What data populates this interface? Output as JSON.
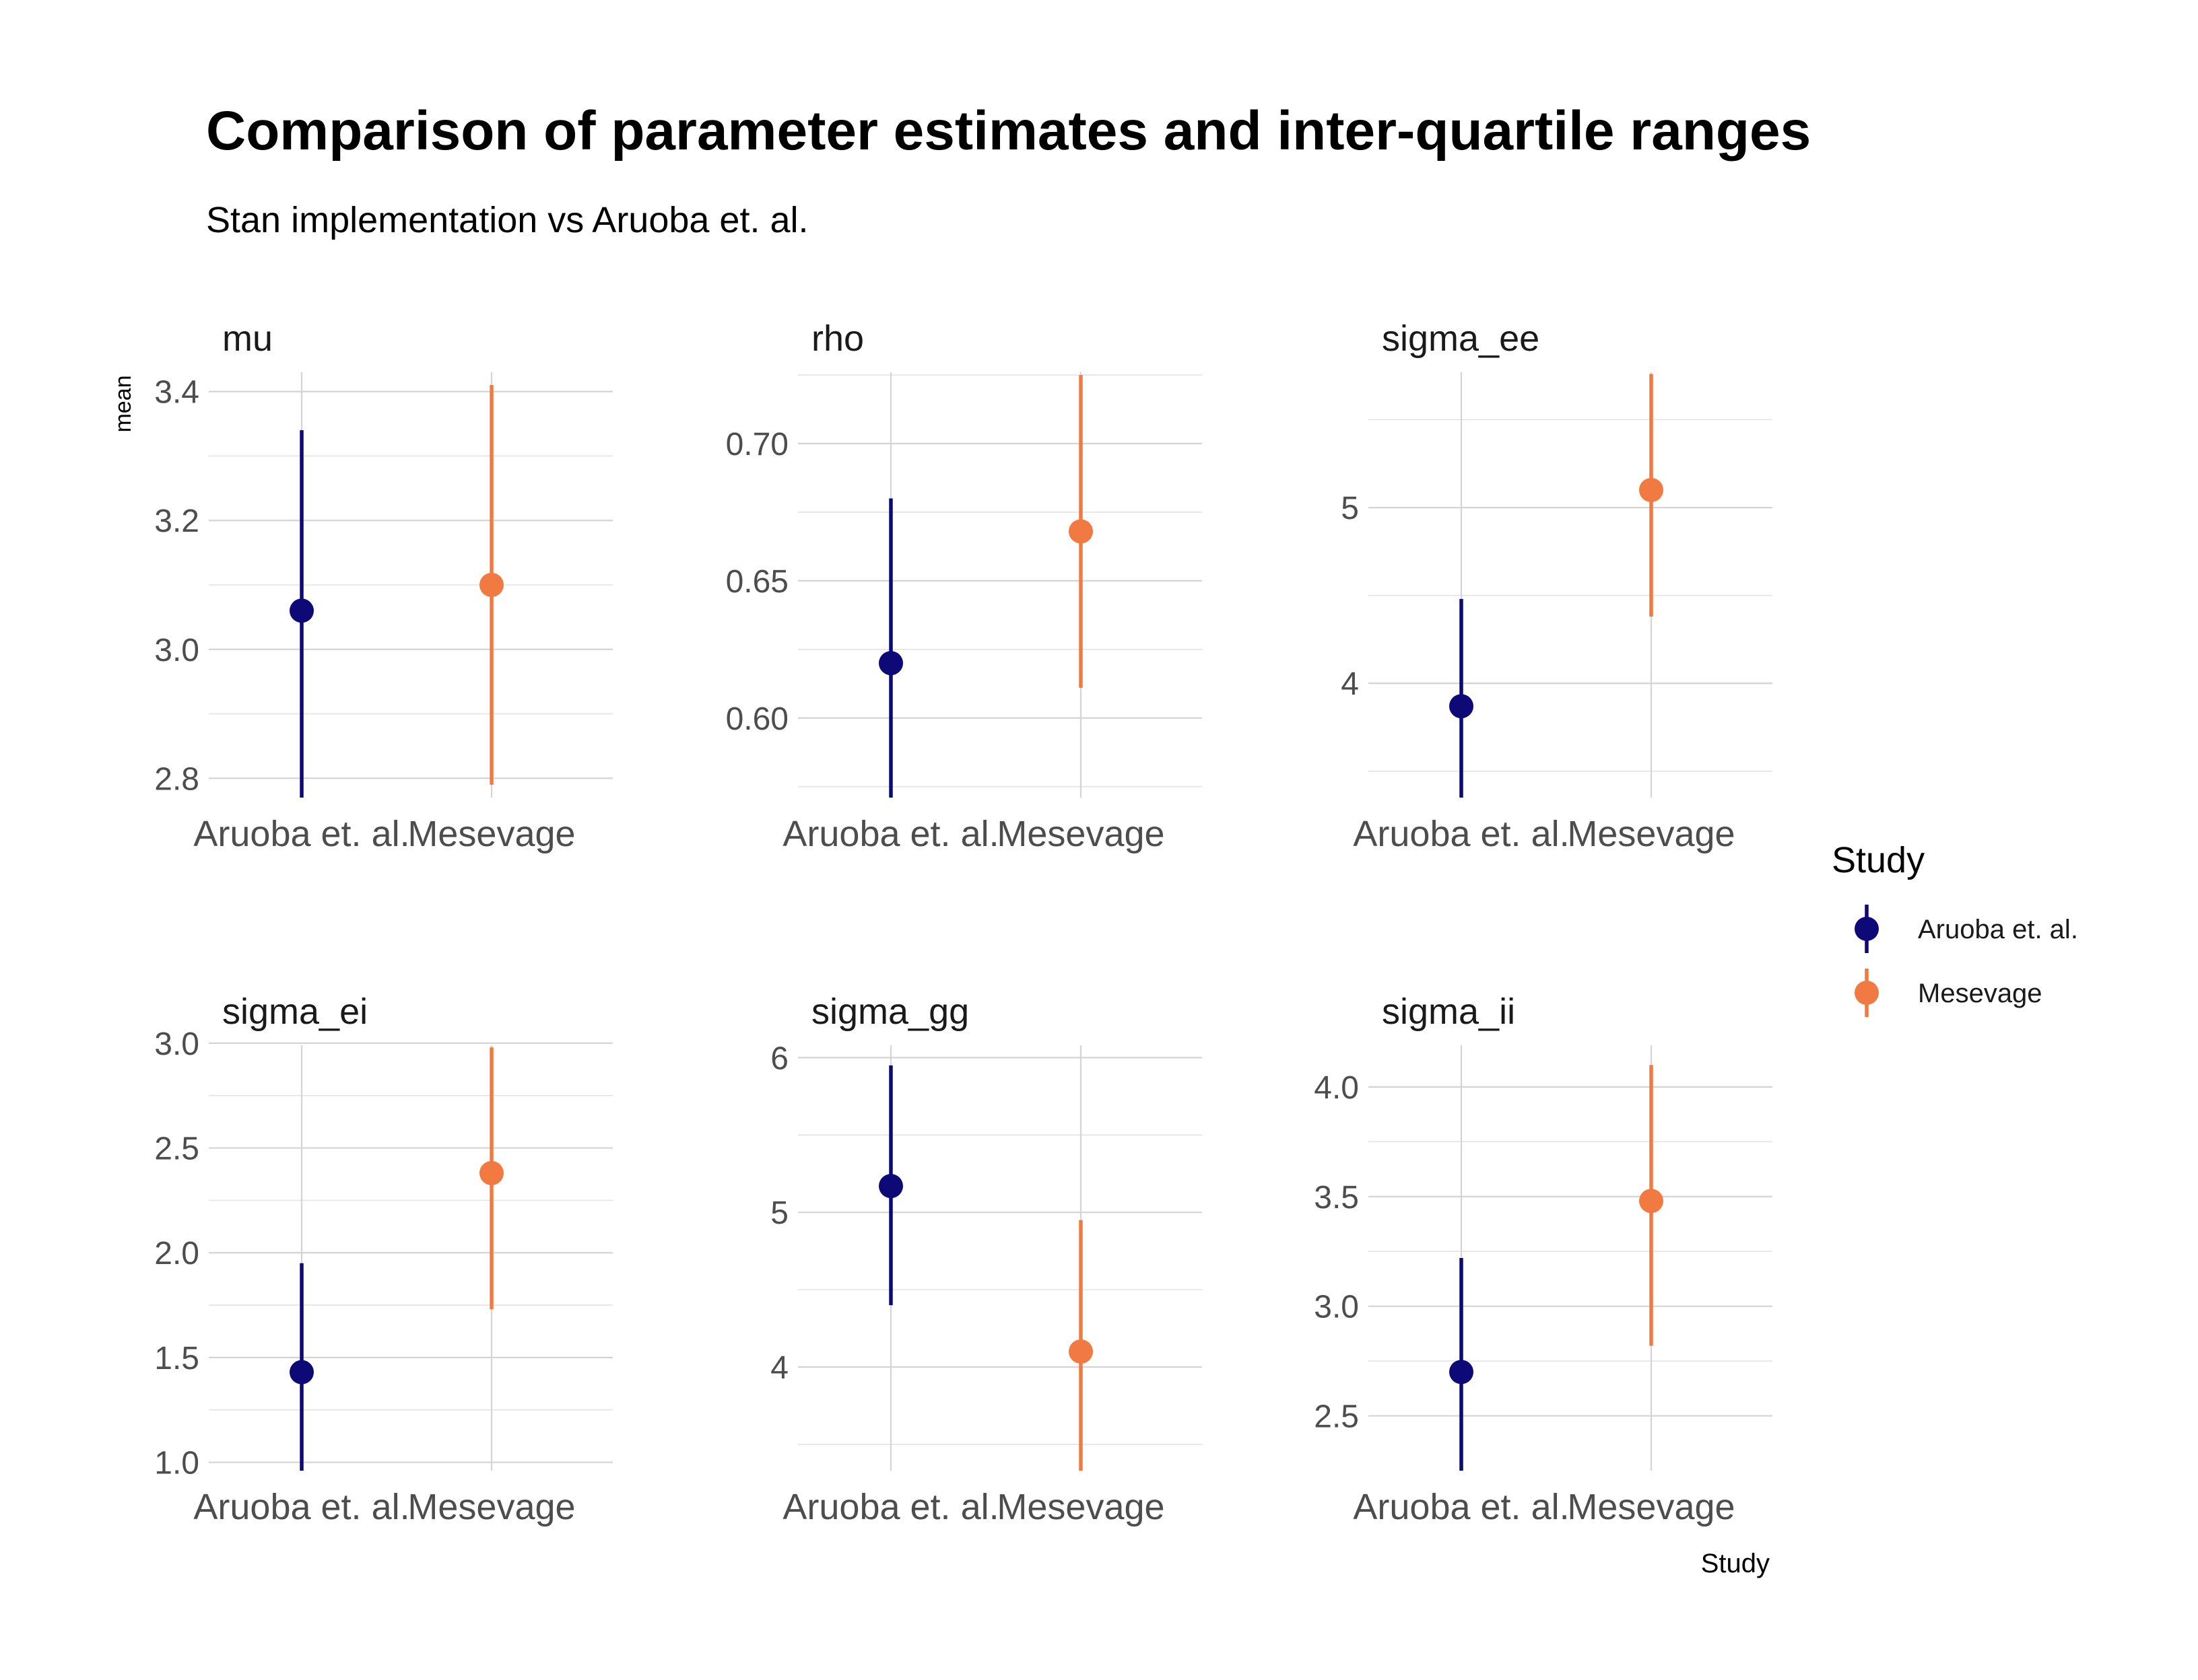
{
  "title": "Comparison of parameter estimates and inter-quartile ranges",
  "subtitle": "Stan implementation vs Aruoba et. al.",
  "chart_data": {
    "type": "pointrange",
    "facet_layout": "2 rows x 3 columns",
    "ylabel": "mean",
    "xlabel": "Study",
    "categories": [
      "Aruoba et. al.",
      "Mesevage"
    ],
    "colors": {
      "Aruoba et. al.": "#0d0a78",
      "Mesevage": "#f07a41"
    },
    "legend": {
      "title": "Study",
      "position": "right",
      "entries": [
        "Aruoba et. al.",
        "Mesevage"
      ]
    },
    "grid": true,
    "panels": [
      {
        "strip": "mu",
        "ylim": [
          2.77,
          3.43
        ],
        "yticks": [
          2.8,
          3.0,
          3.2,
          3.4
        ],
        "ytick_labels": [
          "2.8",
          "3.0",
          "3.2",
          "3.4"
        ],
        "yminor": [
          2.9,
          3.1,
          3.3
        ],
        "points": [
          {
            "study": "Aruoba et. al.",
            "mean": 3.06,
            "low": 2.77,
            "high": 3.34
          },
          {
            "study": "Mesevage",
            "mean": 3.1,
            "low": 2.79,
            "high": 3.41
          }
        ]
      },
      {
        "strip": "rho",
        "ylim": [
          0.571,
          0.726
        ],
        "yticks": [
          0.6,
          0.65,
          0.7
        ],
        "ytick_labels": [
          "0.60",
          "0.65",
          "0.70"
        ],
        "yminor": [
          0.575,
          0.625,
          0.675,
          0.725
        ],
        "points": [
          {
            "study": "Aruoba et. al.",
            "mean": 0.62,
            "low": 0.571,
            "high": 0.68
          },
          {
            "study": "Mesevage",
            "mean": 0.668,
            "low": 0.611,
            "high": 0.725
          }
        ]
      },
      {
        "strip": "sigma_ee",
        "ylim": [
          3.35,
          5.77
        ],
        "yticks": [
          4,
          5
        ],
        "ytick_labels": [
          "4",
          "5"
        ],
        "yminor": [
          3.5,
          4.5,
          5.5
        ],
        "points": [
          {
            "study": "Aruoba et. al.",
            "mean": 3.87,
            "low": 3.35,
            "high": 4.48
          },
          {
            "study": "Mesevage",
            "mean": 5.1,
            "low": 4.38,
            "high": 5.76
          }
        ]
      },
      {
        "strip": "sigma_ei",
        "ylim": [
          0.96,
          2.99
        ],
        "yticks": [
          1.0,
          1.5,
          2.0,
          2.5,
          3.0
        ],
        "ytick_labels": [
          "1.0",
          "1.5",
          "2.0",
          "2.5",
          "3.0"
        ],
        "yminor": [
          1.25,
          1.75,
          2.25,
          2.75
        ],
        "points": [
          {
            "study": "Aruoba et. al.",
            "mean": 1.43,
            "low": 0.96,
            "high": 1.95
          },
          {
            "study": "Mesevage",
            "mean": 2.38,
            "low": 1.73,
            "high": 2.98
          }
        ]
      },
      {
        "strip": "sigma_gg",
        "ylim": [
          3.33,
          6.08
        ],
        "yticks": [
          4,
          5,
          6
        ],
        "ytick_labels": [
          "4",
          "5",
          "6"
        ],
        "yminor": [
          3.5,
          4.5,
          5.5
        ],
        "points": [
          {
            "study": "Aruoba et. al.",
            "mean": 5.17,
            "low": 4.4,
            "high": 5.95
          },
          {
            "study": "Mesevage",
            "mean": 4.1,
            "low": 3.33,
            "high": 4.95
          }
        ]
      },
      {
        "strip": "sigma_ii",
        "ylim": [
          2.25,
          4.19
        ],
        "yticks": [
          2.5,
          3.0,
          3.5,
          4.0
        ],
        "ytick_labels": [
          "2.5",
          "3.0",
          "3.5",
          "4.0"
        ],
        "yminor": [
          2.75,
          3.25,
          3.75
        ],
        "points": [
          {
            "study": "Aruoba et. al.",
            "mean": 2.7,
            "low": 2.25,
            "high": 3.22
          },
          {
            "study": "Mesevage",
            "mean": 3.48,
            "low": 2.82,
            "high": 4.1
          }
        ]
      }
    ]
  }
}
